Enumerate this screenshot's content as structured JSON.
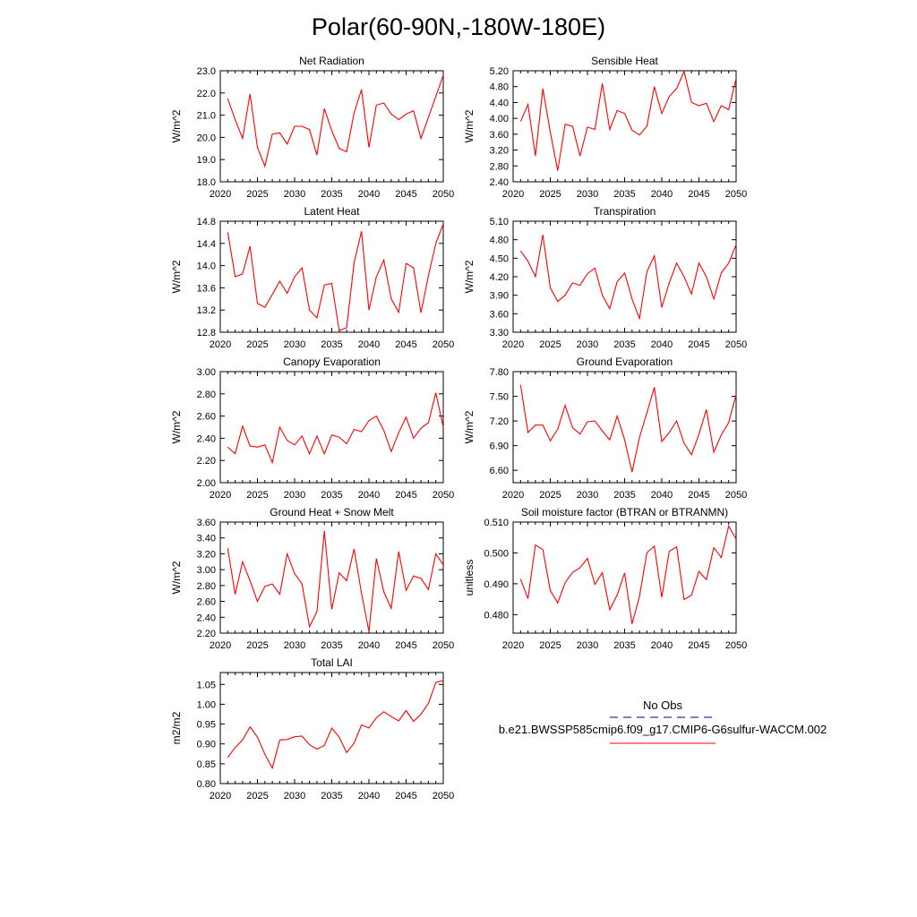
{
  "figure": {
    "title": "Polar(60-90N,-180W-180E)",
    "line_color": "#ff0000",
    "obs_color": "#00007f"
  },
  "legend": {
    "obs_label": "No Obs",
    "model_label": "b.e21.BWSSP585cmip6.f09_g17.CMIP6-G6sulfur-WACCM.002"
  },
  "chart_data": [
    {
      "type": "line",
      "title": "Net Radiation",
      "ylabel": "W/m^2",
      "xlim": [
        2020,
        2050
      ],
      "ylim": [
        18.0,
        23.0
      ],
      "xticks": [
        2020,
        2025,
        2030,
        2035,
        2040,
        2045,
        2050
      ],
      "yticks": [
        18.0,
        19.0,
        20.0,
        21.0,
        22.0,
        23.0
      ],
      "ytick_labels": [
        "18.0",
        "19.0",
        "20.0",
        "21.0",
        "22.0",
        "23.0"
      ],
      "x": [
        2021,
        2022,
        2023,
        2024,
        2025,
        2026,
        2027,
        2028,
        2029,
        2030,
        2031,
        2032,
        2033,
        2034,
        2035,
        2036,
        2037,
        2038,
        2039,
        2040,
        2041,
        2042,
        2043,
        2044,
        2045,
        2046,
        2047,
        2048,
        2049,
        2050
      ],
      "series": [
        {
          "values": [
            21.75,
            20.8,
            19.95,
            21.95,
            19.55,
            18.7,
            20.15,
            20.2,
            19.7,
            20.5,
            20.5,
            20.35,
            19.2,
            21.3,
            20.3,
            19.5,
            19.35,
            21.1,
            22.15,
            19.55,
            21.45,
            21.55,
            21.05,
            20.8,
            21.05,
            21.2,
            19.95,
            20.9,
            21.85,
            22.8
          ]
        }
      ]
    },
    {
      "type": "line",
      "title": "Sensible Heat",
      "ylabel": "W/m^2",
      "xlim": [
        2020,
        2050
      ],
      "ylim": [
        2.4,
        5.2
      ],
      "xticks": [
        2020,
        2025,
        2030,
        2035,
        2040,
        2045,
        2050
      ],
      "yticks": [
        2.4,
        2.8,
        3.2,
        3.6,
        4.0,
        4.4,
        4.8,
        5.2
      ],
      "ytick_labels": [
        "2.40",
        "2.80",
        "3.20",
        "3.60",
        "4.00",
        "4.40",
        "4.80",
        "5.20"
      ],
      "x": [
        2021,
        2022,
        2023,
        2024,
        2025,
        2026,
        2027,
        2028,
        2029,
        2030,
        2031,
        2032,
        2033,
        2034,
        2035,
        2036,
        2037,
        2038,
        2039,
        2040,
        2041,
        2042,
        2043,
        2044,
        2045,
        2046,
        2047,
        2048,
        2049,
        2050
      ],
      "series": [
        {
          "values": [
            3.92,
            4.35,
            3.05,
            4.75,
            3.65,
            2.68,
            3.85,
            3.8,
            3.05,
            3.78,
            3.72,
            4.88,
            3.72,
            4.2,
            4.12,
            3.7,
            3.58,
            3.8,
            4.8,
            4.12,
            4.55,
            4.75,
            5.18,
            4.4,
            4.32,
            4.38,
            3.92,
            4.32,
            4.22,
            5.0
          ]
        }
      ]
    },
    {
      "type": "line",
      "title": "Latent Heat",
      "ylabel": "W/m^2",
      "xlim": [
        2020,
        2050
      ],
      "ylim": [
        12.8,
        14.8
      ],
      "xticks": [
        2020,
        2025,
        2030,
        2035,
        2040,
        2045,
        2050
      ],
      "yticks": [
        12.8,
        13.2,
        13.6,
        14.0,
        14.4,
        14.8
      ],
      "ytick_labels": [
        "12.8",
        "13.2",
        "13.6",
        "14.0",
        "14.4",
        "14.8"
      ],
      "x": [
        2021,
        2022,
        2023,
        2024,
        2025,
        2026,
        2027,
        2028,
        2029,
        2030,
        2031,
        2032,
        2033,
        2034,
        2035,
        2036,
        2037,
        2038,
        2039,
        2040,
        2041,
        2042,
        2043,
        2044,
        2045,
        2046,
        2047,
        2048,
        2049,
        2050
      ],
      "series": [
        {
          "values": [
            14.6,
            13.8,
            13.85,
            14.35,
            13.32,
            13.25,
            13.48,
            13.72,
            13.5,
            13.8,
            13.96,
            13.2,
            13.06,
            13.65,
            13.68,
            12.83,
            12.88,
            14.05,
            14.62,
            13.2,
            13.8,
            14.1,
            13.4,
            13.16,
            14.04,
            13.96,
            13.15,
            13.82,
            14.4,
            14.75
          ]
        }
      ]
    },
    {
      "type": "line",
      "title": "Transpiration",
      "ylabel": "W/m^2",
      "xlim": [
        2020,
        2050
      ],
      "ylim": [
        3.3,
        5.1
      ],
      "xticks": [
        2020,
        2025,
        2030,
        2035,
        2040,
        2045,
        2050
      ],
      "yticks": [
        3.3,
        3.6,
        3.9,
        4.2,
        4.5,
        4.8,
        5.1
      ],
      "ytick_labels": [
        "3.30",
        "3.60",
        "3.90",
        "4.20",
        "4.50",
        "4.80",
        "5.10"
      ],
      "x": [
        2021,
        2022,
        2023,
        2024,
        2025,
        2026,
        2027,
        2028,
        2029,
        2030,
        2031,
        2032,
        2033,
        2034,
        2035,
        2036,
        2037,
        2038,
        2039,
        2040,
        2041,
        2042,
        2043,
        2044,
        2045,
        2046,
        2047,
        2048,
        2049,
        2050
      ],
      "series": [
        {
          "values": [
            4.62,
            4.45,
            4.2,
            4.88,
            4.02,
            3.8,
            3.9,
            4.1,
            4.06,
            4.25,
            4.34,
            3.9,
            3.68,
            4.12,
            4.26,
            3.84,
            3.52,
            4.28,
            4.54,
            3.7,
            4.1,
            4.42,
            4.2,
            3.92,
            4.42,
            4.2,
            3.84,
            4.26,
            4.42,
            4.72
          ]
        }
      ]
    },
    {
      "type": "line",
      "title": "Canopy Evaporation",
      "ylabel": "W/m^2",
      "xlim": [
        2020,
        2050
      ],
      "ylim": [
        2.0,
        3.0
      ],
      "xticks": [
        2020,
        2025,
        2030,
        2035,
        2040,
        2045,
        2050
      ],
      "yticks": [
        2.0,
        2.2,
        2.4,
        2.6,
        2.8,
        3.0
      ],
      "ytick_labels": [
        "2.00",
        "2.20",
        "2.40",
        "2.60",
        "2.80",
        "3.00"
      ],
      "x": [
        2021,
        2022,
        2023,
        2024,
        2025,
        2026,
        2027,
        2028,
        2029,
        2030,
        2031,
        2032,
        2033,
        2034,
        2035,
        2036,
        2037,
        2038,
        2039,
        2040,
        2041,
        2042,
        2043,
        2044,
        2045,
        2046,
        2047,
        2048,
        2049,
        2050
      ],
      "series": [
        {
          "values": [
            2.32,
            2.26,
            2.51,
            2.33,
            2.32,
            2.34,
            2.18,
            2.5,
            2.38,
            2.34,
            2.42,
            2.26,
            2.42,
            2.26,
            2.43,
            2.41,
            2.35,
            2.48,
            2.46,
            2.56,
            2.6,
            2.47,
            2.28,
            2.45,
            2.59,
            2.4,
            2.49,
            2.54,
            2.81,
            2.5
          ]
        }
      ]
    },
    {
      "type": "line",
      "title": "Ground Evaporation",
      "ylabel": "W/m^2",
      "xlim": [
        2020,
        2050
      ],
      "ylim": [
        6.45,
        7.8
      ],
      "xticks": [
        2020,
        2025,
        2030,
        2035,
        2040,
        2045,
        2050
      ],
      "yticks": [
        6.6,
        6.9,
        7.2,
        7.5,
        7.8
      ],
      "ytick_labels": [
        "6.60",
        "6.90",
        "7.20",
        "7.50",
        "7.80"
      ],
      "x": [
        2021,
        2022,
        2023,
        2024,
        2025,
        2026,
        2027,
        2028,
        2029,
        2030,
        2031,
        2032,
        2033,
        2034,
        2035,
        2036,
        2037,
        2038,
        2039,
        2040,
        2041,
        2042,
        2043,
        2044,
        2045,
        2046,
        2047,
        2048,
        2049,
        2050
      ],
      "series": [
        {
          "values": [
            7.64,
            7.06,
            7.15,
            7.15,
            6.96,
            7.1,
            7.39,
            7.12,
            7.04,
            7.19,
            7.2,
            7.08,
            6.97,
            7.26,
            6.97,
            6.58,
            7.0,
            7.3,
            7.61,
            6.95,
            7.06,
            7.2,
            6.93,
            6.79,
            7.04,
            7.34,
            6.82,
            7.03,
            7.18,
            7.52
          ]
        }
      ]
    },
    {
      "type": "line",
      "title": "Ground Heat + Snow Melt",
      "ylabel": "W/m^2",
      "xlim": [
        2020,
        2050
      ],
      "ylim": [
        2.2,
        3.6
      ],
      "xticks": [
        2020,
        2025,
        2030,
        2035,
        2040,
        2045,
        2050
      ],
      "yticks": [
        2.2,
        2.4,
        2.6,
        2.8,
        3.0,
        3.2,
        3.4,
        3.6
      ],
      "ytick_labels": [
        "2.20",
        "2.40",
        "2.60",
        "2.80",
        "3.00",
        "3.20",
        "3.40",
        "3.60"
      ],
      "x": [
        2021,
        2022,
        2023,
        2024,
        2025,
        2026,
        2027,
        2028,
        2029,
        2030,
        2031,
        2032,
        2033,
        2034,
        2035,
        2036,
        2037,
        2038,
        2039,
        2040,
        2041,
        2042,
        2043,
        2044,
        2045,
        2046,
        2047,
        2048,
        2049,
        2050
      ],
      "series": [
        {
          "values": [
            3.27,
            2.69,
            3.1,
            2.86,
            2.6,
            2.79,
            2.82,
            2.69,
            3.2,
            2.95,
            2.82,
            2.28,
            2.47,
            3.49,
            2.5,
            2.96,
            2.86,
            3.26,
            2.7,
            2.22,
            3.14,
            2.72,
            2.51,
            3.23,
            2.74,
            2.92,
            2.89,
            2.75,
            3.2,
            3.06
          ]
        }
      ]
    },
    {
      "type": "line",
      "title": "Soil moisture factor (BTRAN or BTRANMN)",
      "ylabel": "unitless",
      "xlim": [
        2020,
        2050
      ],
      "ylim": [
        0.474,
        0.51
      ],
      "xticks": [
        2020,
        2025,
        2030,
        2035,
        2040,
        2045,
        2050
      ],
      "yticks": [
        0.48,
        0.49,
        0.5,
        0.51
      ],
      "ytick_labels": [
        "0.480",
        "0.490",
        "0.500",
        "0.510"
      ],
      "x": [
        2021,
        2022,
        2023,
        2024,
        2025,
        2026,
        2027,
        2028,
        2029,
        2030,
        2031,
        2032,
        2033,
        2034,
        2035,
        2036,
        2037,
        2038,
        2039,
        2040,
        2041,
        2042,
        2043,
        2044,
        2045,
        2046,
        2047,
        2048,
        2049,
        2050
      ],
      "series": [
        {
          "values": [
            0.4915,
            0.4852,
            0.5026,
            0.5011,
            0.4878,
            0.4838,
            0.4904,
            0.4937,
            0.4952,
            0.4982,
            0.4898,
            0.4936,
            0.4816,
            0.4864,
            0.4935,
            0.477,
            0.4859,
            0.5001,
            0.5022,
            0.4856,
            0.5005,
            0.502,
            0.4849,
            0.4863,
            0.494,
            0.4913,
            0.5017,
            0.4985,
            0.5087,
            0.5045
          ]
        }
      ]
    },
    {
      "type": "line",
      "title": "Total LAI",
      "ylabel": "m2/m2",
      "xlim": [
        2020,
        2050
      ],
      "ylim": [
        0.8,
        1.08
      ],
      "xticks": [
        2020,
        2025,
        2030,
        2035,
        2040,
        2045,
        2050
      ],
      "yticks": [
        0.8,
        0.85,
        0.9,
        0.95,
        1.0,
        1.05
      ],
      "ytick_labels": [
        "0.80",
        "0.85",
        "0.90",
        "0.95",
        "1.00",
        "1.05"
      ],
      "x": [
        2021,
        2022,
        2023,
        2024,
        2025,
        2026,
        2027,
        2028,
        2029,
        2030,
        2031,
        2032,
        2033,
        2034,
        2035,
        2036,
        2037,
        2038,
        2039,
        2040,
        2041,
        2042,
        2043,
        2044,
        2045,
        2046,
        2047,
        2048,
        2049,
        2050
      ],
      "series": [
        {
          "values": [
            0.866,
            0.891,
            0.91,
            0.943,
            0.917,
            0.874,
            0.839,
            0.91,
            0.911,
            0.918,
            0.92,
            0.898,
            0.887,
            0.896,
            0.94,
            0.917,
            0.878,
            0.902,
            0.948,
            0.94,
            0.966,
            0.981,
            0.969,
            0.958,
            0.984,
            0.957,
            0.975,
            1.002,
            1.055,
            1.06
          ]
        }
      ]
    }
  ]
}
